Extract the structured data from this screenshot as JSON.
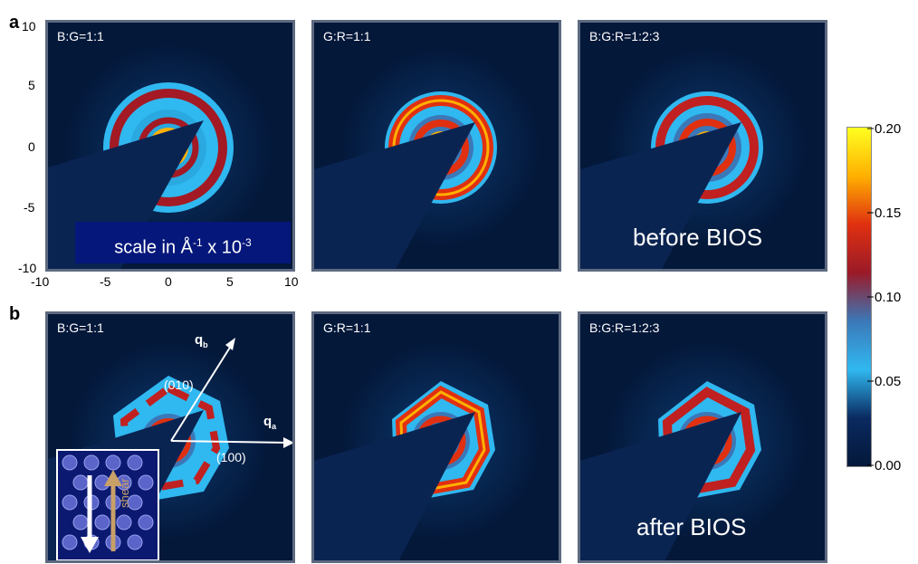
{
  "panel_letters": {
    "a": "a",
    "b": "b"
  },
  "row_a": {
    "panels": [
      {
        "label": "B:G=1:1",
        "ring": "red-outer"
      },
      {
        "label": "G:R=1:1",
        "ring": "red-inner"
      },
      {
        "label": "B:G:R=1:2:3",
        "ring": "mixed"
      }
    ],
    "scale_note": {
      "prefix": "scale in Å",
      "sup1": "-1",
      "mid": " x 10",
      "sup2": "-3"
    },
    "caption": "before BIOS"
  },
  "row_b": {
    "panels": [
      {
        "label": "B:G=1:1"
      },
      {
        "label": "G:R=1:1"
      },
      {
        "label": "B:G:R=1:2:3"
      }
    ],
    "caption": "after BIOS",
    "axis_qb": "q",
    "axis_qb_sub": "b",
    "axis_qa": "q",
    "axis_qa_sub": "a",
    "miller_010": "(010)",
    "miller_100": "(100)",
    "inset_label": "shear"
  },
  "axes": {
    "y_ticks": [
      "10",
      "5",
      "0",
      "-5",
      "-10"
    ],
    "x_ticks": [
      "-10",
      "-5",
      "0",
      "5",
      "10"
    ]
  },
  "colorbar": {
    "ticks": [
      "0.20",
      "0.15",
      "0.10",
      "0.05",
      "0.00"
    ],
    "colors": [
      "#ffff20",
      "#ffb000",
      "#e03010",
      "#9a1a28",
      "#3b78b8",
      "#30b8f0",
      "#0a2a60",
      "#04183a"
    ]
  }
}
